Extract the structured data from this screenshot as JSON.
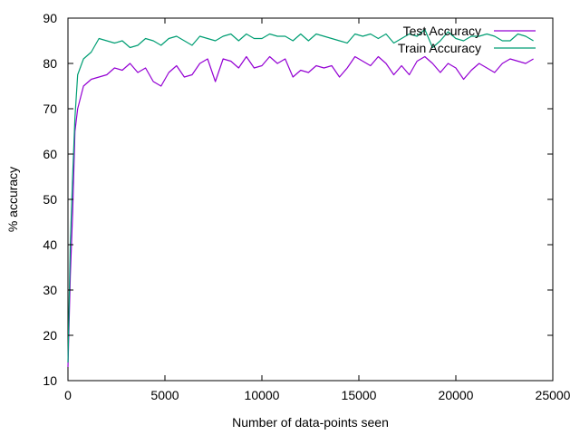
{
  "chart_data": {
    "type": "line",
    "xlabel": "Number of data-points seen",
    "ylabel": "% accuracy",
    "xlim": [
      0,
      25000
    ],
    "ylim": [
      10,
      90
    ],
    "xticks": [
      0,
      5000,
      10000,
      15000,
      20000,
      25000
    ],
    "yticks": [
      10,
      20,
      30,
      40,
      50,
      60,
      70,
      80,
      90
    ],
    "grid": false,
    "legend_position": "top-right",
    "series": [
      {
        "name": "Test Accuracy",
        "color": "#9400d3",
        "x": [
          0,
          120,
          240,
          360,
          500,
          800,
          1200,
          1600,
          2000,
          2400,
          2800,
          3200,
          3600,
          4000,
          4400,
          4800,
          5200,
          5600,
          6000,
          6400,
          6800,
          7200,
          7600,
          8000,
          8400,
          8800,
          9200,
          9600,
          10000,
          10400,
          10800,
          11200,
          11600,
          12000,
          12400,
          12800,
          13200,
          13600,
          14000,
          14400,
          14800,
          15200,
          15600,
          16000,
          16400,
          16800,
          17200,
          17600,
          18000,
          18400,
          18800,
          19200,
          19600,
          20000,
          20400,
          20800,
          21200,
          21600,
          22000,
          22400,
          22800,
          23200,
          23600,
          24000
        ],
        "values": [
          13,
          33,
          47,
          65,
          70,
          75,
          76.5,
          77,
          77.5,
          79,
          78.5,
          80,
          78,
          79,
          76,
          75,
          78,
          79.5,
          77,
          77.5,
          80,
          81,
          76,
          81,
          80.5,
          79,
          81.5,
          79,
          79.5,
          81.5,
          80,
          81,
          77,
          78.5,
          78,
          79.5,
          79,
          79.5,
          77,
          79,
          81.5,
          80.5,
          79.5,
          81.5,
          80,
          77.5,
          79.5,
          77.5,
          80.5,
          81.5,
          80,
          78,
          80,
          79,
          76.5,
          78.5,
          80,
          79,
          78,
          80,
          81,
          80.5,
          80,
          81
        ]
      },
      {
        "name": "Train Accuracy",
        "color": "#009e73",
        "x": [
          0,
          120,
          240,
          360,
          500,
          800,
          1200,
          1600,
          2000,
          2400,
          2800,
          3200,
          3600,
          4000,
          4400,
          4800,
          5200,
          5600,
          6000,
          6400,
          6800,
          7200,
          7600,
          8000,
          8400,
          8800,
          9200,
          9600,
          10000,
          10400,
          10800,
          11200,
          11600,
          12000,
          12400,
          12800,
          13200,
          13600,
          14000,
          14400,
          14800,
          15200,
          15600,
          16000,
          16400,
          16800,
          17200,
          17600,
          18000,
          18400,
          18800,
          19200,
          19600,
          20000,
          20400,
          20800,
          21200,
          21600,
          22000,
          22400,
          22800,
          23200,
          23600,
          24000
        ],
        "values": [
          14,
          40,
          55,
          68,
          77.5,
          81,
          82.5,
          85.5,
          85,
          84.5,
          85,
          83.5,
          84,
          85.5,
          85,
          84,
          85.5,
          86,
          85,
          84,
          86,
          85.5,
          85,
          86,
          86.5,
          85,
          86.5,
          85.5,
          85.5,
          86.5,
          86,
          86,
          85,
          86.5,
          85,
          86.5,
          86,
          85.5,
          85,
          84.5,
          86.5,
          86,
          86.5,
          85.5,
          86.5,
          84.5,
          85.5,
          86.5,
          86,
          87.5,
          83.5,
          85,
          87,
          85.5,
          85,
          86,
          86,
          86.5,
          86,
          85,
          85,
          86.5,
          86,
          85
        ]
      }
    ]
  }
}
